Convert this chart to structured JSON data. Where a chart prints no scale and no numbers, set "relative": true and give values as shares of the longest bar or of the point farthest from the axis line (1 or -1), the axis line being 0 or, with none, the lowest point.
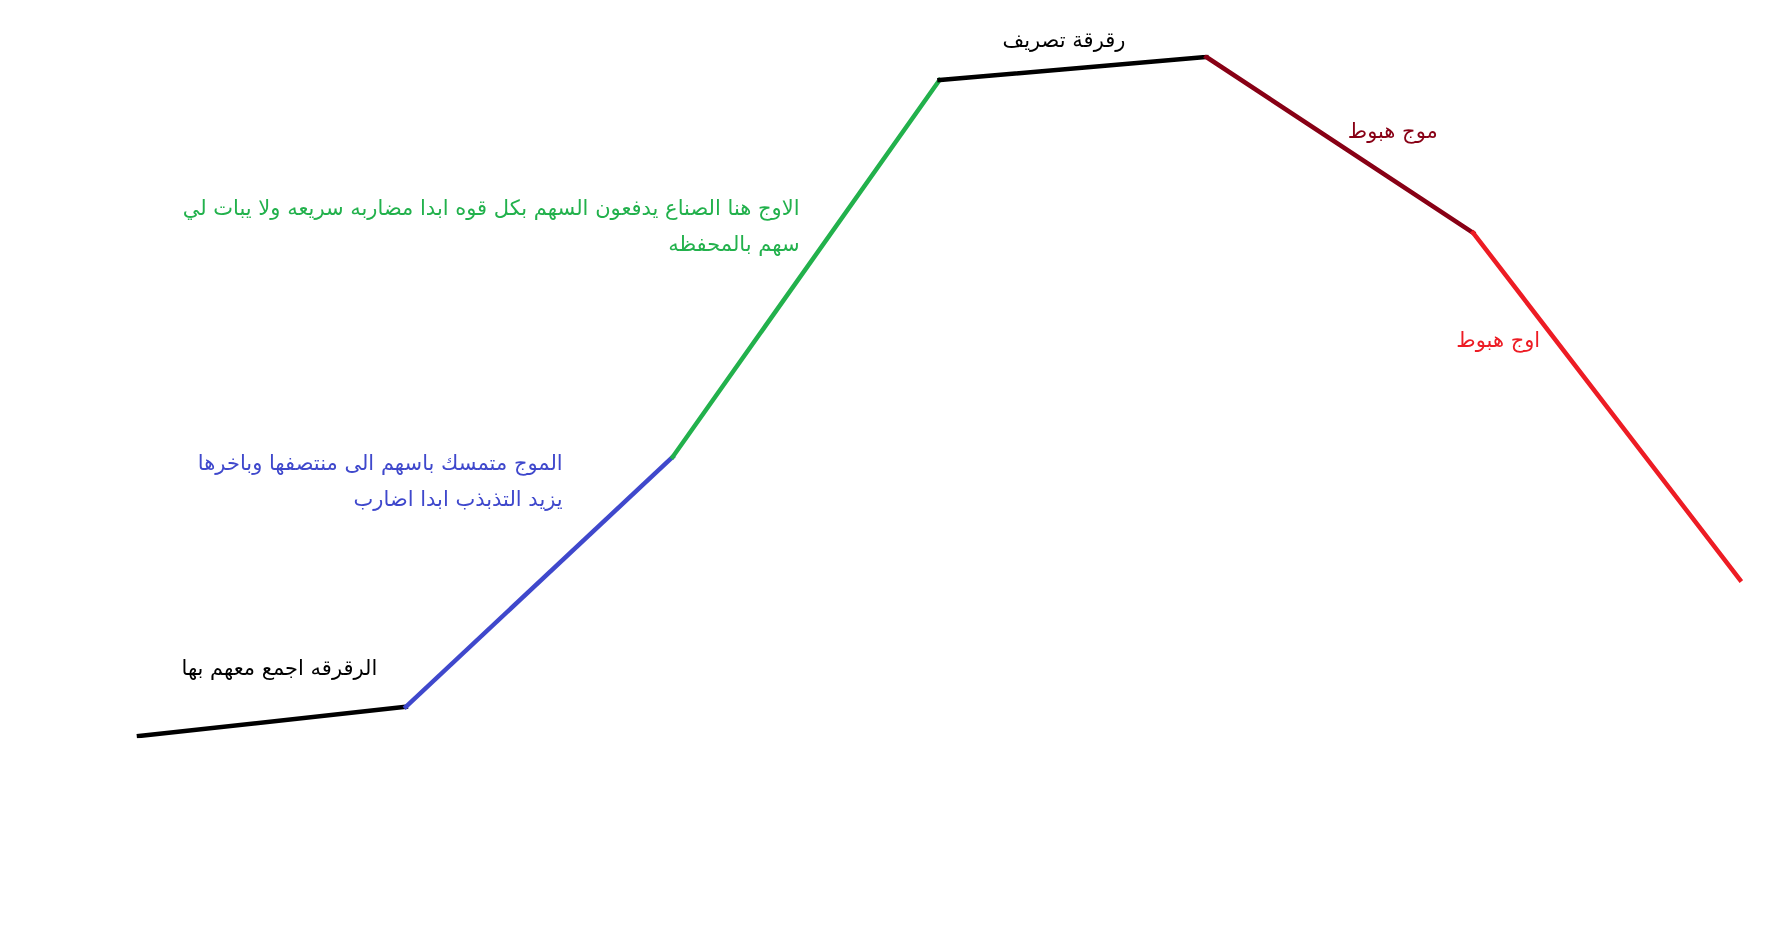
{
  "chart_data": {
    "type": "line",
    "relative": true,
    "categories": [
      null,
      null,
      null,
      null,
      null,
      null,
      null
    ],
    "series": [
      {
        "name": "الرقرقه اجمع معهم بها",
        "color": "#000000",
        "values": [
          0,
          0.043,
          null,
          null,
          null,
          null,
          null
        ]
      },
      {
        "name": "الموج متمسك باسهم الى منتصفها وباخرها\nيزيد التذبذب ابدا اضارب",
        "color": "#3f48cc",
        "values": [
          null,
          0.043,
          0.411,
          null,
          null,
          null,
          null
        ]
      },
      {
        "name": "الاوج هنا الصناع يدفعون السهم بكل قوه ابدا مضاربه سريعه ولا يبات لي\nسهم بالمحفظه",
        "color": "#22b14c",
        "values": [
          null,
          null,
          0.411,
          0.966,
          null,
          null,
          null
        ]
      },
      {
        "name": "رقرقة تصريف",
        "color": "#000000",
        "values": [
          null,
          null,
          null,
          0.966,
          1,
          null,
          null
        ]
      },
      {
        "name": "موج هبوط",
        "color": "#880015",
        "values": [
          null,
          null,
          null,
          null,
          1,
          0.741,
          null
        ]
      },
      {
        "name": "اوج هبوط",
        "color": "#ed1c24",
        "values": [
          null,
          null,
          null,
          null,
          null,
          0.741,
          0.23
        ]
      }
    ]
  }
}
